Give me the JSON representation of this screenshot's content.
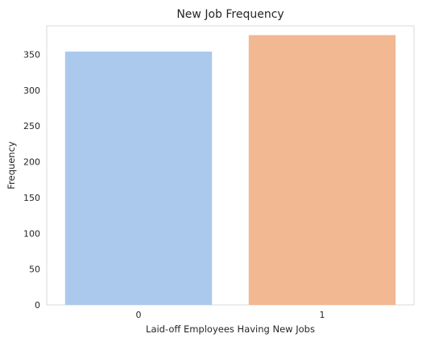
{
  "chart_data": {
    "type": "bar",
    "title": "New Job Frequency",
    "xlabel": "Laid-off Employees Having New Jobs",
    "ylabel": "Frequency",
    "categories": [
      "0",
      "1"
    ],
    "values": [
      354,
      377
    ],
    "colors": [
      "#abc9ed",
      "#f1b892"
    ],
    "ylim": [
      0,
      390
    ],
    "yticks": [
      0,
      50,
      100,
      150,
      200,
      250,
      300,
      350
    ],
    "grid": false,
    "legend": "none"
  }
}
